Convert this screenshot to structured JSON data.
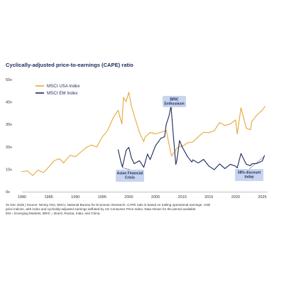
{
  "chart_data": {
    "type": "line",
    "title": "Cyclically-adjusted price-to-earnings (CAPE) ratio",
    "xlim": [
      1980,
      2026
    ],
    "ylim": [
      0,
      50
    ],
    "x_ticks": [
      "1980",
      "1985",
      "1990",
      "1995",
      "2000",
      "2005",
      "2010",
      "2015",
      "2020",
      "2025"
    ],
    "y_ticks": [
      "0x",
      "10x",
      "20x",
      "30x",
      "40x",
      "50x"
    ],
    "legend": {
      "placement": "top-left"
    },
    "grid": false,
    "series": [
      {
        "name": "MSCI USA Index",
        "color": "#e8a838",
        "x": [
          1980,
          1981,
          1982,
          1983,
          1984,
          1985,
          1986,
          1987,
          1987.8,
          1988,
          1989,
          1990,
          1991,
          1992,
          1993,
          1994,
          1995,
          1996,
          1997,
          1998,
          1998.7,
          1999,
          1999.5,
          2000,
          2000.5,
          2001,
          2001.5,
          2002,
          2002.8,
          2003,
          2004,
          2005,
          2006,
          2007,
          2008,
          2008.5,
          2009,
          2009.5,
          2010,
          2011,
          2012,
          2013,
          2014,
          2015,
          2016,
          2017,
          2018,
          2019,
          2020,
          2020.3,
          2021,
          2022,
          2022.8,
          2023,
          2024,
          2025,
          2025.5
        ],
        "values": [
          9,
          9.3,
          7.2,
          9.6,
          8.5,
          11,
          13.8,
          14.7,
          12.8,
          13.5,
          16.2,
          15.6,
          17.6,
          19.7,
          20.8,
          19.9,
          24.3,
          27.2,
          32.6,
          36.3,
          30.2,
          42,
          40.1,
          44.3,
          38,
          34,
          30.2,
          26.3,
          22.3,
          24.2,
          26.4,
          25.8,
          26.5,
          27.3,
          15.9,
          17.5,
          19.4,
          20.1,
          20.2,
          21.8,
          22.2,
          24.5,
          26.5,
          26.3,
          27.2,
          30.8,
          29.5,
          30.2,
          32,
          25.7,
          37.4,
          28.3,
          27.6,
          31.1,
          34.2,
          36.4,
          38
        ]
      },
      {
        "name": "MSCI EM Index",
        "color": "#1b2a5c",
        "x": [
          1998,
          1998.5,
          1998.8,
          1999.5,
          2000,
          2000.5,
          2001,
          2002,
          2002.8,
          2003.5,
          2004,
          2005,
          2006,
          2006.7,
          2007,
          2007.5,
          2007.9,
          2008.3,
          2008.8,
          2009,
          2009.5,
          2010,
          2011,
          2011.8,
          2012,
          2013,
          2014,
          2015,
          2016,
          2017,
          2018,
          2019,
          2020,
          2020.3,
          2021,
          2022,
          2022.8,
          2023,
          2024,
          2025,
          2025.4
        ],
        "values": [
          18.7,
          13.5,
          11,
          18.4,
          19.8,
          15,
          12.5,
          13.8,
          10.9,
          16.8,
          14.3,
          20.5,
          23.8,
          24.5,
          30,
          33.5,
          38.2,
          26,
          12.2,
          14,
          22.8,
          19.9,
          15.6,
          13.2,
          14.2,
          12.8,
          14.4,
          11.4,
          9.8,
          12.4,
          10.3,
          12.2,
          11.4,
          10.6,
          17,
          12.2,
          11.6,
          12.4,
          12.6,
          13.7,
          16.1
        ]
      }
    ],
    "annotations": [
      {
        "label": [
          "Asian Financial",
          "Crisis"
        ],
        "x": 1998.8,
        "y": 11
      },
      {
        "label": [
          "BRIC",
          "Enthusiasm"
        ],
        "x": 2007.9,
        "y": 38.2
      },
      {
        "label": [
          "58% discount",
          "today"
        ],
        "x": 2025.4,
        "y": 16.1
      }
    ]
  },
  "footnote": [
    "31 Dec 2025 | Source: Ninety One, MSCI, National Bureau for Economic Research. CAPE ratio is based on trailing operational earnings. US$",
    "price indices, with index and cyclically-adjusted earnings deflated by US Consumer Price Index. Data shown for the period available.",
    "EM = Emerging Markets, BRIC = Brazil, Russia, India, and China."
  ]
}
